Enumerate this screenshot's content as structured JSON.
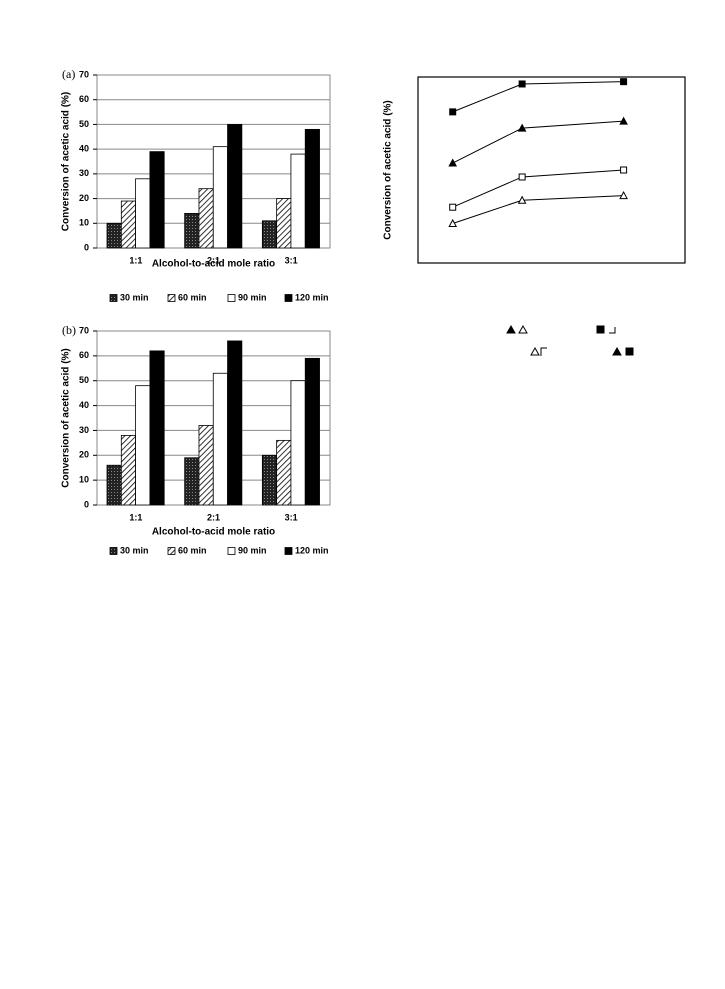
{
  "chart_data": [
    {
      "type": "bar",
      "label": "(a)",
      "ylabel": "Conversion of acetic acid (%)",
      "xlabel": "Alcohol-to-acid mole ratio",
      "categories": [
        "1:1",
        "2:1",
        "3:1"
      ],
      "ylim": [
        0,
        70
      ],
      "yticks": [
        0,
        10,
        20,
        30,
        40,
        50,
        60,
        70
      ],
      "grid": true,
      "series": [
        {
          "name": "30 min",
          "color": "#333333",
          "pattern": "dots",
          "values": [
            10,
            14,
            11
          ]
        },
        {
          "name": "60 min",
          "color": "#ffffff",
          "pattern": "hatch",
          "values": [
            19,
            24,
            20
          ]
        },
        {
          "name": "90 min",
          "color": "#ffffff",
          "values": [
            28,
            41,
            38
          ]
        },
        {
          "name": "120 min",
          "color": "#000000",
          "values": [
            39,
            50,
            48
          ]
        }
      ]
    },
    {
      "type": "bar",
      "label": "(b)",
      "ylabel": "Conversion of acetic acid (%)",
      "xlabel": "Alcohol-to-acid mole ratio",
      "categories": [
        "1:1",
        "2:1",
        "3:1"
      ],
      "ylim": [
        0,
        70
      ],
      "yticks": [
        0,
        10,
        20,
        30,
        40,
        50,
        60,
        70
      ],
      "grid": true,
      "series": [
        {
          "name": "30 min",
          "color": "#333333",
          "pattern": "dots",
          "values": [
            16,
            19,
            20
          ]
        },
        {
          "name": "60 min",
          "color": "#ffffff",
          "pattern": "hatch",
          "values": [
            28,
            32,
            26
          ]
        },
        {
          "name": "90 min",
          "color": "#ffffff",
          "values": [
            48,
            53,
            50
          ]
        },
        {
          "name": "120 min",
          "color": "#000000",
          "values": [
            62,
            66,
            59
          ]
        }
      ]
    },
    {
      "type": "line",
      "ylabel": "Conversion of acetic acid (%)",
      "xlim": [
        0,
        100
      ],
      "ylim": [
        0,
        80
      ],
      "series": [
        {
          "color": "#000000",
          "marker": "square",
          "filled": true,
          "x": [
            13,
            39,
            77
          ],
          "values": [
            65,
            77,
            78
          ]
        },
        {
          "color": "#000000",
          "marker": "triangle",
          "filled": true,
          "x": [
            13,
            39,
            77
          ],
          "values": [
            43,
            58,
            61
          ]
        },
        {
          "color": "#000000",
          "marker": "square",
          "filled": false,
          "x": [
            13,
            39,
            77
          ],
          "values": [
            24,
            37,
            40
          ]
        },
        {
          "color": "#000000",
          "marker": "triangle",
          "filled": false,
          "x": [
            13,
            39,
            77
          ],
          "values": [
            17,
            27,
            29
          ]
        }
      ]
    }
  ]
}
